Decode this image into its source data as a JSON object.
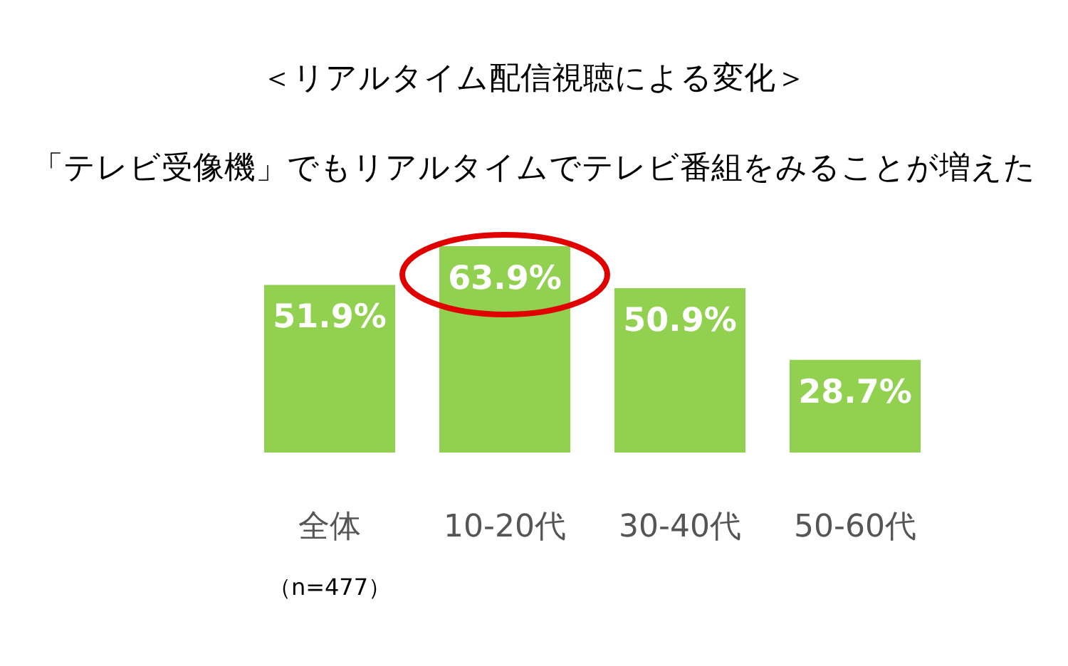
{
  "chart_data": {
    "type": "bar",
    "title": "＜リアルタイム配信視聴による変化＞",
    "subtitle": "「テレビ受像機」でもリアルタイムでテレビ番組をみることが増えた",
    "categories": [
      "全体",
      "10-20代",
      "30-40代",
      "50-60代"
    ],
    "values": [
      51.9,
      63.9,
      50.9,
      28.7
    ],
    "value_labels": [
      "51.9%",
      "63.9%",
      "50.9%",
      "28.7%"
    ],
    "color": "#92d050",
    "tick_labels": "x",
    "annotations": [
      "（n=477）"
    ]
  }
}
